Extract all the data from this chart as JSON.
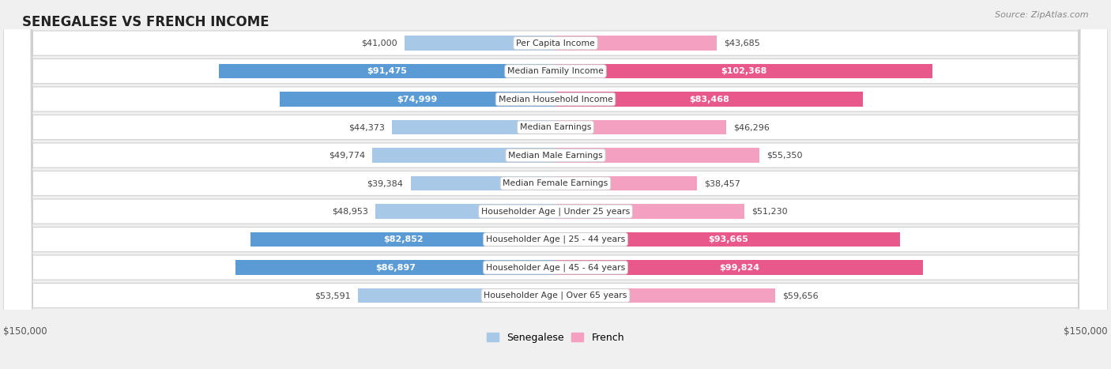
{
  "title": "SENEGALESE VS FRENCH INCOME",
  "source": "Source: ZipAtlas.com",
  "categories": [
    "Per Capita Income",
    "Median Family Income",
    "Median Household Income",
    "Median Earnings",
    "Median Male Earnings",
    "Median Female Earnings",
    "Householder Age | Under 25 years",
    "Householder Age | 25 - 44 years",
    "Householder Age | 45 - 64 years",
    "Householder Age | Over 65 years"
  ],
  "senegalese": [
    41000,
    91475,
    74999,
    44373,
    49774,
    39384,
    48953,
    82852,
    86897,
    53591
  ],
  "french": [
    43685,
    102368,
    83468,
    46296,
    55350,
    38457,
    51230,
    93665,
    99824,
    59656
  ],
  "senegalese_labels": [
    "$41,000",
    "$91,475",
    "$74,999",
    "$44,373",
    "$49,774",
    "$39,384",
    "$48,953",
    "$82,852",
    "$86,897",
    "$53,591"
  ],
  "french_labels": [
    "$43,685",
    "$102,368",
    "$83,468",
    "$46,296",
    "$55,350",
    "$38,457",
    "$51,230",
    "$93,665",
    "$99,824",
    "$59,656"
  ],
  "color_senegalese_light": "#a8c8e8",
  "color_senegalese_dark": "#5b9bd5",
  "color_french_light": "#f4a0c0",
  "color_french_dark": "#e8588a",
  "max_val": 150000,
  "threshold_dark_label": 65000,
  "xlabel_left": "$150,000",
  "xlabel_right": "$150,000",
  "legend_senegalese": "Senegalese",
  "legend_french": "French",
  "row_colors": [
    "#f7f7f7",
    "#efefef"
  ],
  "bg_color": "#f0f0f0"
}
